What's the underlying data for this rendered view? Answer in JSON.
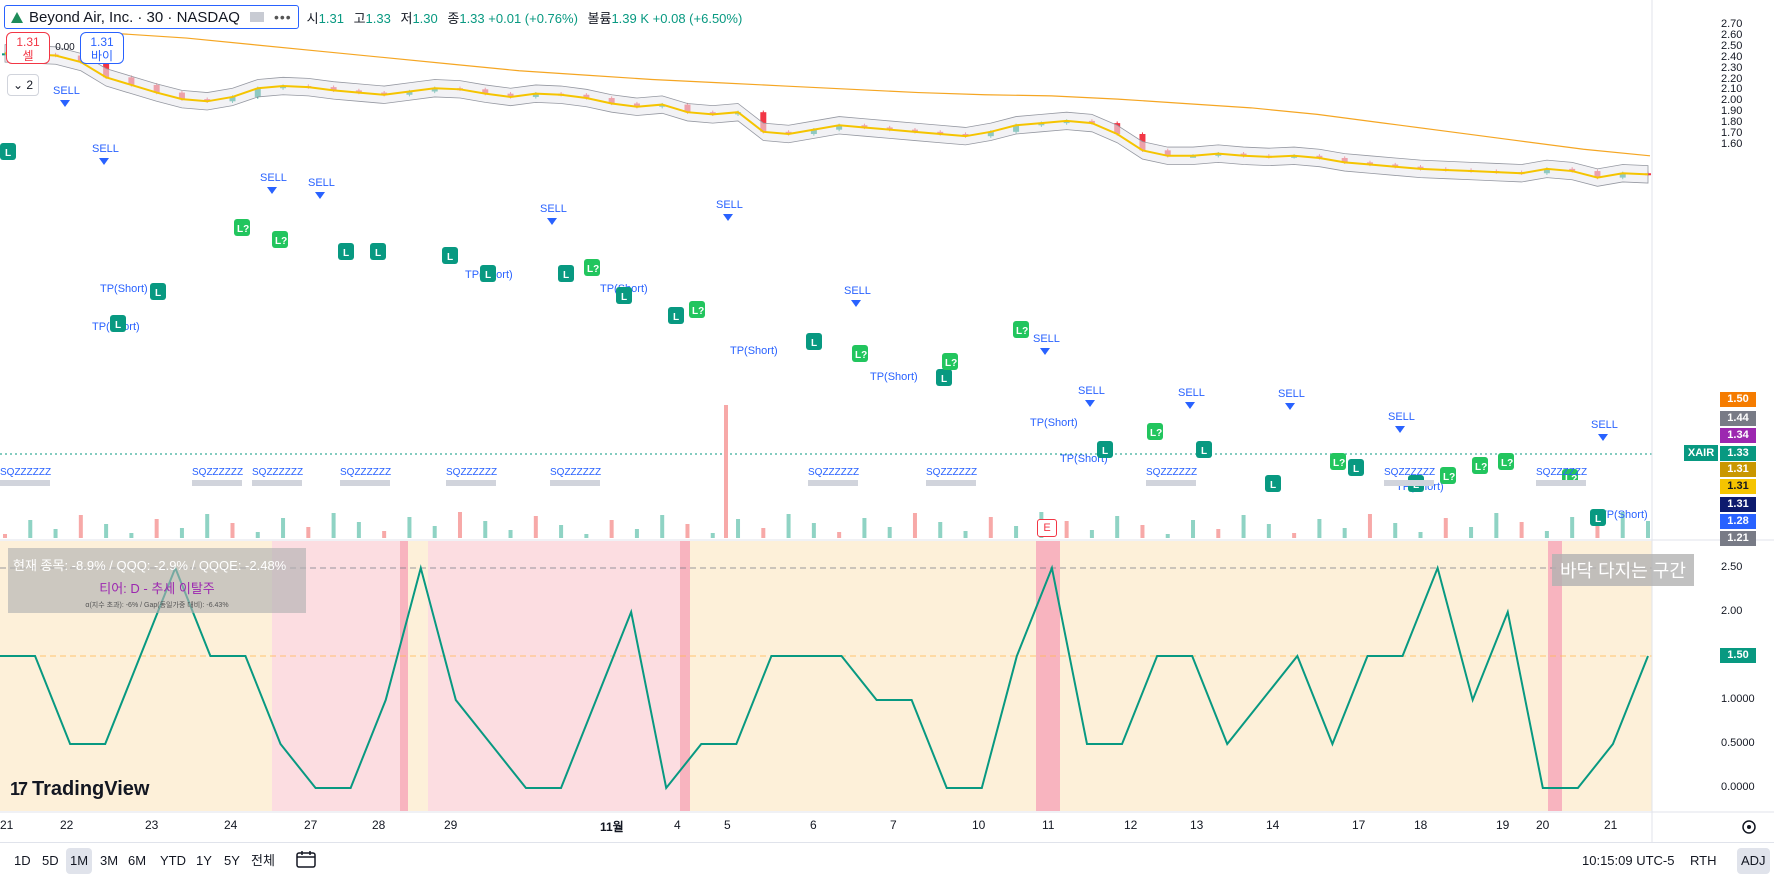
{
  "header": {
    "symbol_title": "Beyond Air, Inc. · 30 · NASDAQ",
    "more": "•••",
    "ohlc": {
      "open_label": "시",
      "open": "1.31",
      "high_label": "고",
      "high": "1.33",
      "low_label": "저",
      "low": "1.30",
      "close_label": "종",
      "close": "1.33",
      "change": "+0.01 (+0.76%)",
      "volume_label": "볼륨",
      "volume": "1.39 K",
      "volume_change": "+0.08 (+6.50%)"
    }
  },
  "trade": {
    "sell_price": "1.31",
    "sell_label": "셀",
    "spread": "0.00",
    "buy_price": "1.31",
    "buy_label": "바이"
  },
  "collapse_count": "2",
  "price_axis_labels": [
    "2.70",
    "2.60",
    "2.50",
    "2.40",
    "2.30",
    "2.20",
    "2.10",
    "2.00",
    "1.90",
    "1.80",
    "1.70",
    "1.60"
  ],
  "price_tags": [
    {
      "value": "1.50",
      "color": "#f57c00"
    },
    {
      "value": "1.44",
      "color": "#787b86"
    },
    {
      "value": "1.34",
      "color": "#9c27b0"
    },
    {
      "value": "1.33",
      "color": "#089981"
    },
    {
      "value": "1.31",
      "color": "#c99700"
    },
    {
      "value": "1.31",
      "color": "#f5c400"
    },
    {
      "value": "1.31",
      "color": "#0d1a6e"
    },
    {
      "value": "1.28",
      "color": "#2962ff"
    },
    {
      "value": "1.21",
      "color": "#787b86"
    }
  ],
  "symbol_tag": "XAIR",
  "osc_axis_labels": [
    "2.50",
    "2.00",
    "1.50",
    "1.0000",
    "0.5000",
    "0.0000"
  ],
  "osc_current": {
    "value": "1.50",
    "color": "#089981"
  },
  "dates": [
    "21",
    "22",
    "23",
    "24",
    "27",
    "28",
    "29",
    "11월",
    "4",
    "5",
    "6",
    "7",
    "10",
    "11",
    "12",
    "13",
    "14",
    "17",
    "18",
    "19",
    "20",
    "21"
  ],
  "chart_labels": {
    "sell": "SELL",
    "tp_short": "TP(Short)",
    "long": "L",
    "long2": "L?",
    "sq": "SQZZZZZZ",
    "earnings": "E"
  },
  "info_box": {
    "line1": "현재 종목: -8.9% / QQQ: -2.9% / QQQE: -2.48%",
    "line2": "티어: D - 추세 이탈주",
    "line3": "α(지수 초과): -6% / Gap(동일가중 대비): -6.43%"
  },
  "zone_label": "바닥 다지는 구간",
  "brand": "TradingView",
  "toolbar": {
    "timeframes": [
      "1D",
      "5D",
      "1M",
      "3M",
      "6M",
      "YTD",
      "1Y",
      "5Y",
      "전체"
    ],
    "active": "1M",
    "clock": "10:15:09 UTC-5",
    "rth": "RTH",
    "adj": "ADJ"
  },
  "colors": {
    "up": "#089981",
    "down": "#f23645",
    "ema": "#f5a623",
    "bb_fill": "#e9eaee",
    "osc_line": "#089981",
    "osc_bg_orange": "#fdf0d9",
    "osc_bg_red": "#fcdde1"
  },
  "chart_data": {
    "type": "line",
    "price_closes": [
      2.44,
      2.43,
      2.42,
      2.36,
      2.22,
      2.15,
      2.08,
      2.02,
      2.0,
      2.04,
      2.12,
      2.14,
      2.13,
      2.1,
      2.08,
      2.06,
      2.09,
      2.12,
      2.11,
      2.07,
      2.04,
      2.07,
      2.06,
      2.03,
      1.98,
      1.95,
      1.97,
      1.9,
      1.88,
      1.9,
      1.72,
      1.7,
      1.74,
      1.78,
      1.76,
      1.74,
      1.72,
      1.7,
      1.68,
      1.72,
      1.78,
      1.8,
      1.82,
      1.8,
      1.7,
      1.55,
      1.5,
      1.5,
      1.52,
      1.5,
      1.49,
      1.5,
      1.48,
      1.44,
      1.42,
      1.4,
      1.38,
      1.37,
      1.36,
      1.35,
      1.34,
      1.38,
      1.36,
      1.3,
      1.34,
      1.33
    ],
    "ema_200": [
      2.62,
      2.58,
      2.52,
      2.46,
      2.4,
      2.34,
      2.28,
      2.24,
      2.2,
      2.17,
      2.14,
      2.11,
      2.08,
      2.06,
      2.05,
      2.02,
      1.98,
      1.94,
      1.88,
      1.8,
      1.72,
      1.64,
      1.56,
      1.5
    ],
    "oscillator": [
      1.5,
      1.5,
      0.5,
      0.5,
      1.5,
      2.5,
      1.5,
      1.5,
      0.5,
      0,
      0,
      1,
      2.5,
      1,
      0.5,
      0,
      0,
      1,
      2,
      0,
      0.5,
      0.5,
      1.5,
      1.5,
      1.5,
      1,
      1,
      0,
      0,
      1.5,
      2.5,
      0.5,
      0.5,
      1.5,
      1.5,
      0.5,
      1,
      1.5,
      0.5,
      1.5,
      1.5,
      2.5,
      1,
      2,
      0,
      0,
      0.5,
      1.5
    ],
    "osc_ylim": [
      0,
      2.5
    ],
    "price_ylim": [
      1.2,
      2.7
    ]
  }
}
